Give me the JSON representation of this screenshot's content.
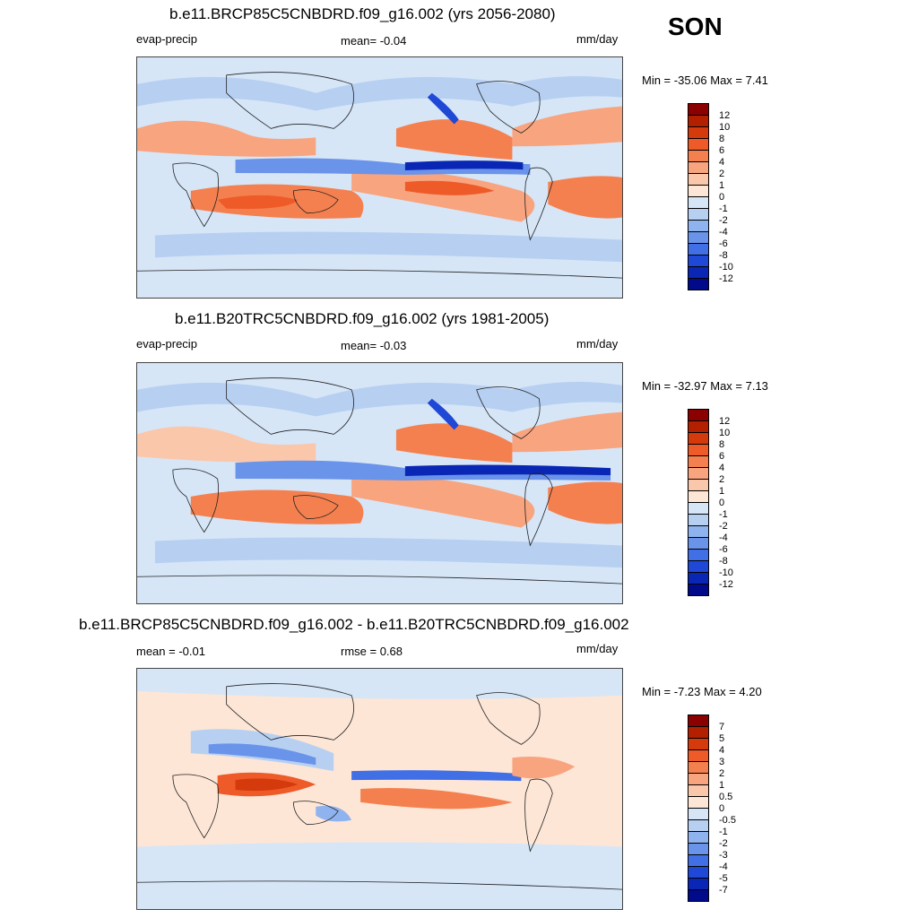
{
  "season": "SON",
  "panels": [
    {
      "title": "b.e11.BRCP85C5CNBDRD.f09_g16.002 (yrs 2056-2080)",
      "left_label": "evap-precip",
      "center_label": "mean=  -0.04",
      "units": "mm/day",
      "minmax": "Min = -35.06 Max =   7.41",
      "colorbar_ticks": [
        "12",
        "10",
        "8",
        "6",
        "4",
        "2",
        "1",
        "0",
        "-1",
        "-2",
        "-4",
        "-6",
        "-8",
        "-10",
        "-12"
      ]
    },
    {
      "title": "b.e11.B20TRC5CNBDRD.f09_g16.002 (yrs 1981-2005)",
      "left_label": "evap-precip",
      "center_label": "mean=  -0.03",
      "units": "mm/day",
      "minmax": "Min = -32.97 Max =   7.13",
      "colorbar_ticks": [
        "12",
        "10",
        "8",
        "6",
        "4",
        "2",
        "1",
        "0",
        "-1",
        "-2",
        "-4",
        "-6",
        "-8",
        "-10",
        "-12"
      ]
    },
    {
      "title": "b.e11.BRCP85C5CNBDRD.f09_g16.002 - b.e11.B20TRC5CNBDRD.f09_g16.002",
      "left_label": "mean =  -0.01",
      "center_label": "rmse =   0.68",
      "units": "mm/day",
      "minmax": "Min =  -7.23 Max =   4.20",
      "colorbar_ticks": [
        "7",
        "5",
        "4",
        "3",
        "2",
        "1",
        "0.5",
        "0",
        "-0.5",
        "-1",
        "-2",
        "-3",
        "-4",
        "-5",
        "-7"
      ]
    }
  ],
  "colors": {
    "palette": [
      "#8b0000",
      "#b22000",
      "#d43a0c",
      "#ee5a28",
      "#f5804f",
      "#f8a47f",
      "#fbc7ab",
      "#fde6d6",
      "#d6e6f7",
      "#b7d0f2",
      "#8fb3ee",
      "#6a93ea",
      "#4170e6",
      "#1f48d6",
      "#0a26b5",
      "#000a8a"
    ]
  }
}
